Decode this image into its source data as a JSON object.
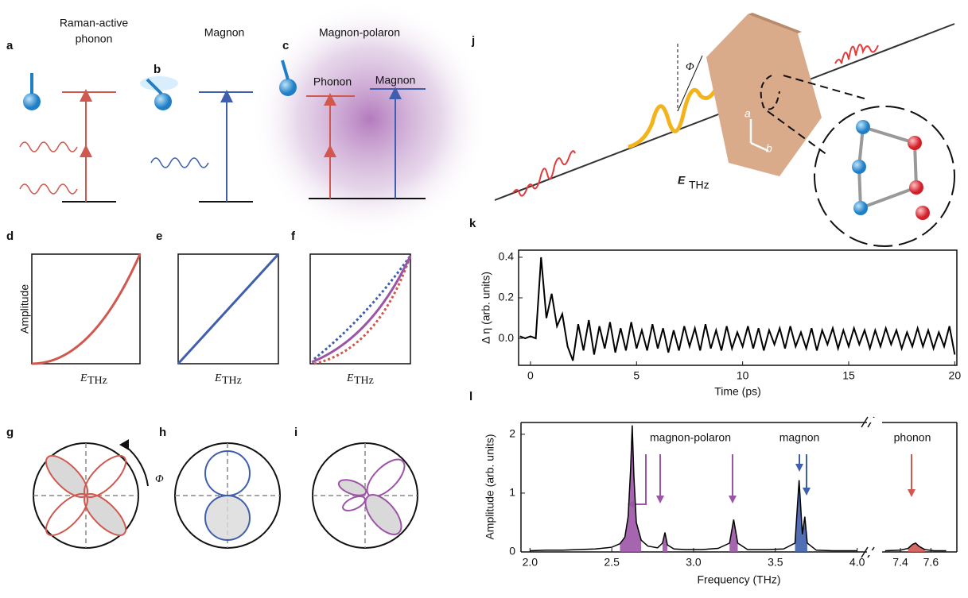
{
  "panels": {
    "a": {
      "label": "a",
      "title": [
        "Raman-active",
        "phonon"
      ]
    },
    "b": {
      "label": "b",
      "title": "Magnon"
    },
    "c": {
      "label": "c",
      "title": "Magnon-polaron",
      "levels": [
        "Phonon",
        "Magnon"
      ]
    },
    "d": {
      "label": "d",
      "ylabel": "Amplitude",
      "xlabel": "E",
      "xsub": "THz"
    },
    "e": {
      "label": "e",
      "xlabel": "E",
      "xsub": "THz"
    },
    "f": {
      "label": "f",
      "xlabel": "E",
      "xsub": "THz"
    },
    "g": {
      "label": "g",
      "angle": "Φ"
    },
    "h": {
      "label": "h"
    },
    "i": {
      "label": "i"
    },
    "j": {
      "label": "j",
      "angle": "Φ",
      "field": "E",
      "sub": "THz",
      "axes": [
        "a",
        "b"
      ]
    }
  },
  "chart_data": [
    {
      "type": "line",
      "label": "k",
      "xlabel": "Time (ps)",
      "ylabel": "Δ η (arb. units)",
      "color": "#000000",
      "x": [
        -0.5,
        -0.25,
        0,
        0.25,
        0.5,
        0.75,
        1,
        1.25,
        1.5,
        1.75,
        2,
        2.25,
        2.5,
        2.75,
        3,
        3.25,
        3.5,
        3.75,
        4,
        4.25,
        4.5,
        4.75,
        5,
        5.25,
        5.5,
        5.75,
        6,
        6.25,
        6.5,
        6.75,
        7,
        7.25,
        7.5,
        7.75,
        8,
        8.25,
        8.5,
        8.75,
        9,
        9.25,
        9.5,
        9.75,
        10,
        10.25,
        10.5,
        10.75,
        11,
        11.25,
        11.5,
        11.75,
        12,
        12.25,
        12.5,
        12.75,
        13,
        13.25,
        13.5,
        13.75,
        14,
        14.25,
        14.5,
        14.75,
        15,
        15.25,
        15.5,
        15.75,
        16,
        16.25,
        16.5,
        16.75,
        17,
        17.25,
        17.5,
        17.75,
        18,
        18.25,
        18.5,
        18.75,
        19,
        19.25,
        19.5,
        19.75,
        20
      ],
      "values": [
        0.01,
        0,
        0.01,
        0,
        0.4,
        0.1,
        0.22,
        0.06,
        0.12,
        -0.04,
        -0.11,
        0.07,
        -0.06,
        0.09,
        -0.08,
        0.06,
        -0.05,
        0.08,
        -0.07,
        0.05,
        -0.06,
        0.08,
        -0.05,
        0.04,
        -0.06,
        0.07,
        -0.05,
        0.05,
        -0.07,
        0.04,
        -0.06,
        0.06,
        -0.04,
        0.05,
        -0.06,
        0.07,
        -0.05,
        0.04,
        -0.06,
        0.06,
        -0.05,
        0.03,
        -0.04,
        0.06,
        -0.05,
        0.05,
        -0.06,
        0.04,
        -0.03,
        0.05,
        -0.05,
        0.06,
        -0.04,
        0.03,
        -0.05,
        0.05,
        -0.06,
        0.04,
        -0.03,
        0.05,
        -0.05,
        0.04,
        -0.04,
        0.05,
        -0.03,
        0.04,
        -0.05,
        0.04,
        -0.04,
        0.05,
        -0.03,
        0.04,
        -0.05,
        0.03,
        -0.04,
        0.05,
        -0.04,
        0.04,
        -0.05,
        0.03,
        -0.04,
        0.06,
        -0.08
      ],
      "xlim": [
        -0.56,
        20.1
      ],
      "ylim": [
        -0.133,
        0.435
      ],
      "xticks": [
        0,
        5,
        10,
        15,
        20
      ],
      "yticks": [
        {
          "value": 0,
          "label": "0.0"
        },
        0.2,
        0.4
      ]
    },
    {
      "type": "line",
      "label": "l",
      "xlabel": "Frequency (THz)",
      "ylabel": "Amplitude (arb. units)",
      "color": "#000000",
      "segments": [
        {
          "xlim": [
            1.945,
            4.06
          ],
          "xticks": [
            {
              "value": 2,
              "label": "2.0"
            },
            2.5,
            {
              "value": 3,
              "label": "3.0"
            },
            3.5,
            {
              "value": 4,
              "label": "4.0"
            }
          ],
          "x": [
            2.0,
            2.1,
            2.2,
            2.3,
            2.4,
            2.5,
            2.55,
            2.58,
            2.6,
            2.615,
            2.625,
            2.635,
            2.65,
            2.68,
            2.72,
            2.78,
            2.81,
            2.825,
            2.84,
            2.88,
            2.95,
            3.05,
            3.15,
            3.22,
            3.245,
            3.27,
            3.33,
            3.45,
            3.55,
            3.62,
            3.645,
            3.665,
            3.68,
            3.695,
            3.75,
            3.85,
            3.95,
            4.0
          ],
          "values": [
            0.02,
            0.03,
            0.03,
            0.04,
            0.05,
            0.08,
            0.14,
            0.25,
            0.6,
            1.4,
            2.15,
            1.3,
            0.5,
            0.2,
            0.1,
            0.07,
            0.15,
            0.33,
            0.12,
            0.05,
            0.04,
            0.04,
            0.06,
            0.15,
            0.55,
            0.15,
            0.04,
            0.04,
            0.05,
            0.15,
            1.22,
            0.3,
            0.6,
            0.15,
            0.03,
            0.02,
            0.02,
            0.02
          ]
        },
        {
          "xlim": [
            7.28,
            7.77
          ],
          "xticks": [
            7.4,
            7.6
          ],
          "x": [
            7.3,
            7.4,
            7.45,
            7.48,
            7.5,
            7.52,
            7.56,
            7.62,
            7.7
          ],
          "values": [
            0.02,
            0.03,
            0.06,
            0.13,
            0.15,
            0.1,
            0.04,
            0.02,
            0.02
          ]
        }
      ],
      "ylim": [
        0,
        2.2
      ],
      "yticks": [
        0,
        1,
        2
      ],
      "series": [
        {
          "name": "magnon-polaron",
          "color": "#9c55a6",
          "peaks": [
            {
              "x": [
                2.55,
                2.58,
                2.6,
                2.615,
                2.625,
                2.635,
                2.65,
                2.68
              ],
              "values": [
                0.14,
                0.25,
                0.6,
                1.4,
                2.15,
                1.3,
                0.5,
                0.2
              ]
            },
            {
              "x": [
                2.81,
                2.825,
                2.84
              ],
              "values": [
                0.15,
                0.33,
                0.12
              ]
            },
            {
              "x": [
                3.22,
                3.245,
                3.27
              ],
              "values": [
                0.15,
                0.55,
                0.15
              ]
            }
          ]
        },
        {
          "name": "magnon",
          "color": "#3f5fae",
          "peaks": [
            {
              "x": [
                3.62,
                3.645,
                3.665,
                3.68,
                3.695
              ],
              "values": [
                0.15,
                1.22,
                0.3,
                0.6,
                0.15
              ]
            }
          ]
        },
        {
          "name": "phonon",
          "color": "#d0584f",
          "peaks": [
            {
              "x": [
                7.45,
                7.48,
                7.5,
                7.52,
                7.56
              ],
              "values": [
                0.06,
                0.13,
                0.15,
                0.1,
                0.04
              ]
            }
          ]
        }
      ]
    }
  ]
}
